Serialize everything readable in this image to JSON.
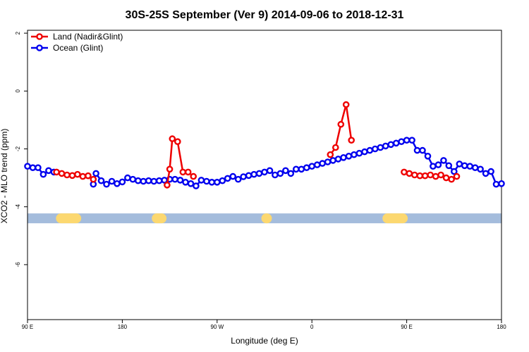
{
  "chart_data": {
    "type": "line",
    "title": "30S-25S September (Ver 9)   2014-09-06 to 2018-12-31",
    "xlabel": "Longitude (deg E)",
    "ylabel": "XCO2 - MLO trend (ppm)",
    "x_tick_labels": [
      "90 E",
      "180",
      "90 W",
      "0",
      "90 E",
      "180"
    ],
    "y_tick_labels": [
      "2",
      "0",
      "-2",
      "-4",
      "-6"
    ],
    "y_ticks": [
      2,
      0,
      -2,
      -4,
      -6
    ],
    "ylim": [
      -7.9,
      2.1
    ],
    "grid": false,
    "legend_position": "top-left",
    "colors": {
      "land": "#ee0000",
      "ocean": "#0000ee",
      "ocean_band": "#a4bcdc",
      "land_band": "#fcd870"
    },
    "legend": [
      {
        "label": "Land (Nadir&Glint)",
        "color": "#ee0000"
      },
      {
        "label": "Ocean (Glint)",
        "color": "#0000ee"
      }
    ],
    "series": [
      {
        "name": "Land (Nadir&Glint)",
        "color": "#ee0000",
        "x": [
          117.5,
          122.5,
          127.5,
          132.5,
          137.5,
          142.5,
          147.5,
          152.5,
          222.5,
          225.0,
          227.5,
          232.5,
          237.5,
          242.5,
          247.5,
          377.5,
          382.5,
          387.5,
          392.5,
          397.5,
          447.5,
          452.5,
          457.5,
          462.5,
          467.5,
          472.5,
          477.5,
          482.5,
          487.5,
          492.5,
          497.5
        ],
        "y": [
          -2.8,
          -2.85,
          -2.9,
          -2.92,
          -2.88,
          -2.95,
          -2.93,
          -3.05,
          -3.25,
          -2.7,
          -1.65,
          -1.75,
          -2.8,
          -2.8,
          -2.95,
          -2.2,
          -1.95,
          -1.15,
          -0.47,
          -1.7,
          -2.8,
          -2.85,
          -2.9,
          -2.93,
          -2.93,
          -2.9,
          -2.95,
          -2.9,
          -3.0,
          -3.05,
          -2.95
        ]
      },
      {
        "name": "Ocean (Glint)",
        "color": "#0000ee",
        "x": [
          90,
          95,
          100,
          105,
          110,
          115,
          152.5,
          155,
          160,
          165,
          170,
          175,
          180,
          185,
          190,
          195,
          200,
          205,
          210,
          215,
          220,
          225,
          230,
          235,
          240,
          245,
          250,
          255,
          260,
          265,
          270,
          275,
          280,
          285,
          290,
          295,
          300,
          305,
          310,
          315,
          320,
          325,
          330,
          335,
          340,
          345,
          350,
          355,
          360,
          365,
          370,
          375,
          380,
          385,
          390,
          395,
          400,
          405,
          410,
          415,
          420,
          425,
          430,
          435,
          440,
          445,
          450,
          455,
          460,
          465,
          470,
          475,
          480,
          485,
          490,
          495,
          500,
          505,
          510,
          515,
          520,
          525,
          530,
          535,
          540
        ],
        "y": [
          -2.6,
          -2.65,
          -2.65,
          -2.88,
          -2.75,
          -2.8,
          -3.22,
          -2.85,
          -3.1,
          -3.22,
          -3.12,
          -3.2,
          -3.14,
          -3.0,
          -3.05,
          -3.1,
          -3.12,
          -3.1,
          -3.12,
          -3.1,
          -3.08,
          -3.05,
          -3.05,
          -3.08,
          -3.15,
          -3.2,
          -3.28,
          -3.08,
          -3.12,
          -3.15,
          -3.15,
          -3.1,
          -3.02,
          -2.95,
          -3.05,
          -2.96,
          -2.92,
          -2.88,
          -2.85,
          -2.8,
          -2.75,
          -2.9,
          -2.85,
          -2.75,
          -2.85,
          -2.7,
          -2.7,
          -2.65,
          -2.6,
          -2.55,
          -2.5,
          -2.45,
          -2.4,
          -2.35,
          -2.3,
          -2.25,
          -2.2,
          -2.15,
          -2.1,
          -2.05,
          -2.0,
          -1.95,
          -1.9,
          -1.85,
          -1.8,
          -1.75,
          -1.7,
          -1.7,
          -2.05,
          -2.05,
          -2.25,
          -2.6,
          -2.55,
          -2.4,
          -2.58,
          -2.78,
          -2.52,
          -2.58,
          -2.6,
          -2.65,
          -2.7,
          -2.85,
          -2.78,
          -3.22,
          -3.2
        ]
      }
    ],
    "surface_band": {
      "y": -4.4,
      "land_x_ranges": [
        [
          117,
          141
        ],
        [
          208,
          222
        ],
        [
          312,
          322
        ],
        [
          427,
          451
        ]
      ]
    }
  }
}
